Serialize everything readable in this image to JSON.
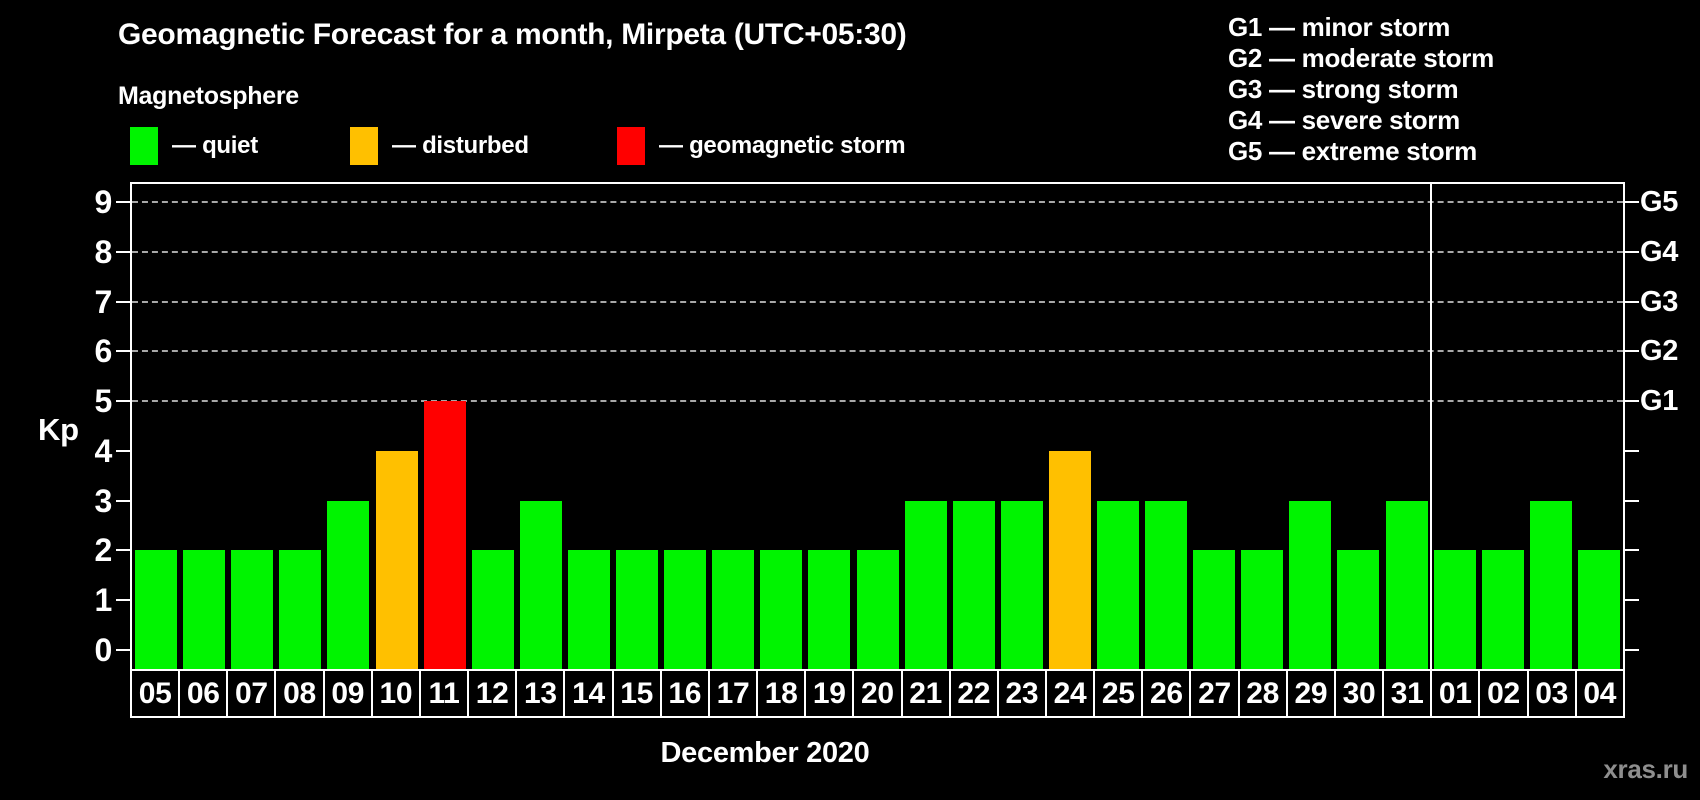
{
  "title": "Geomagnetic Forecast for a month, Mirpeta (UTC+05:30)",
  "subtitle": "Magnetosphere",
  "legend": {
    "items": [
      {
        "name": "quiet",
        "label": "— quiet",
        "color": "#00F400"
      },
      {
        "name": "disturbed",
        "label": "— disturbed",
        "color": "#FFC000"
      },
      {
        "name": "storm",
        "label": "— geomagnetic storm",
        "color": "#FF0000"
      }
    ]
  },
  "storm_legend": {
    "lines": [
      "G1 — minor storm",
      "G2 — moderate storm",
      "G3 — strong storm",
      "G4 — severe storm",
      "G5 — extreme storm"
    ]
  },
  "watermark": "xras.ru",
  "chart_data": {
    "type": "bar",
    "ylabel": "Kp",
    "xlabel": "December 2020",
    "ylim": [
      0,
      9
    ],
    "yticks": [
      0,
      1,
      2,
      3,
      4,
      5,
      6,
      7,
      8,
      9
    ],
    "gridlines_at": [
      5,
      6,
      7,
      8,
      9
    ],
    "grid": "dashed horizontal at storm levels only",
    "legend_position": "top",
    "right_axis_labels": [
      {
        "label": "G1",
        "kp": 5
      },
      {
        "label": "G2",
        "kp": 6
      },
      {
        "label": "G3",
        "kp": 7
      },
      {
        "label": "G4",
        "kp": 8
      },
      {
        "label": "G5",
        "kp": 9
      }
    ],
    "categories": [
      "05",
      "06",
      "07",
      "08",
      "09",
      "10",
      "11",
      "12",
      "13",
      "14",
      "15",
      "16",
      "17",
      "18",
      "19",
      "20",
      "21",
      "22",
      "23",
      "24",
      "25",
      "26",
      "27",
      "28",
      "29",
      "30",
      "31",
      "01",
      "02",
      "03",
      "04"
    ],
    "values": [
      2,
      2,
      2,
      2,
      3,
      4,
      5,
      2,
      3,
      2,
      2,
      2,
      2,
      2,
      2,
      2,
      3,
      3,
      3,
      4,
      3,
      3,
      2,
      2,
      3,
      2,
      3,
      2,
      2,
      3,
      2
    ],
    "statuses": [
      "quiet",
      "quiet",
      "quiet",
      "quiet",
      "quiet",
      "disturbed",
      "storm",
      "quiet",
      "quiet",
      "quiet",
      "quiet",
      "quiet",
      "quiet",
      "quiet",
      "quiet",
      "quiet",
      "quiet",
      "quiet",
      "quiet",
      "disturbed",
      "quiet",
      "quiet",
      "quiet",
      "quiet",
      "quiet",
      "quiet",
      "quiet",
      "quiet",
      "quiet",
      "quiet",
      "quiet"
    ],
    "status_colors": {
      "quiet": "#00F400",
      "disturbed": "#FFC000",
      "storm": "#FF0000"
    },
    "month_boundary_after_index": 26
  }
}
